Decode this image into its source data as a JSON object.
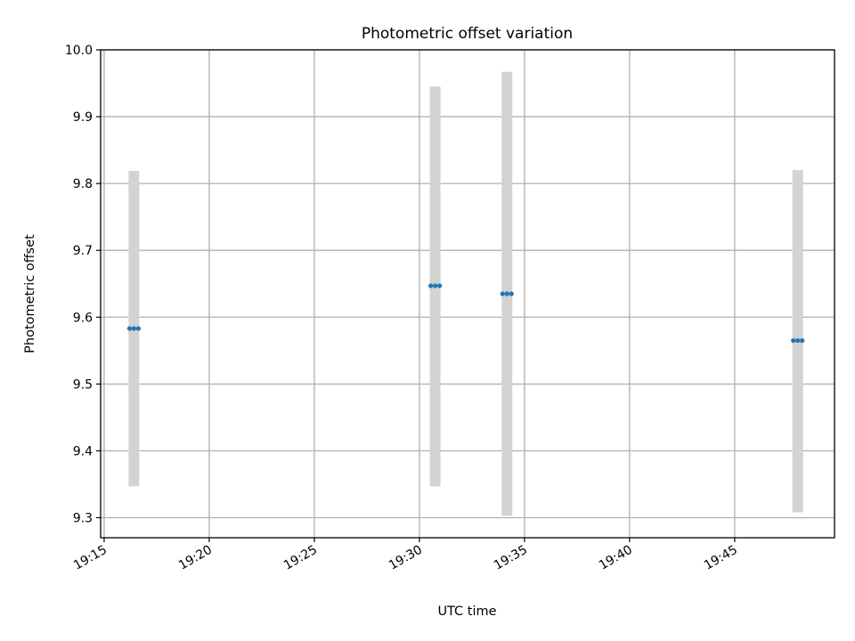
{
  "chart_data": {
    "type": "scatter",
    "title": "Photometric offset variation",
    "xlabel": "UTC time",
    "ylabel": "Photometric offset",
    "x_tick_labels": [
      "19:15",
      "19:20",
      "19:25",
      "19:30",
      "19:35",
      "19:40",
      "19:45"
    ],
    "y_tick_labels": [
      "9.3",
      "9.4",
      "9.5",
      "9.6",
      "9.7",
      "9.8",
      "9.9",
      "10.0"
    ],
    "xlim": [
      "19:14:50",
      "19:49:45"
    ],
    "ylim": [
      9.27,
      10.0
    ],
    "grid": true,
    "colors": {
      "points": "#1f77b4",
      "error_bars": "#d3d3d3",
      "grid": "#b0b0b0"
    },
    "points": [
      {
        "x": "19:16:25",
        "y": 9.583,
        "ymin": 9.347,
        "ymax": 9.819
      },
      {
        "x": "19:30:45",
        "y": 9.647,
        "ymin": 9.347,
        "ymax": 9.945
      },
      {
        "x": "19:34:10",
        "y": 9.635,
        "ymin": 9.303,
        "ymax": 9.967
      },
      {
        "x": "19:48:00",
        "y": 9.565,
        "ymin": 9.308,
        "ymax": 9.82
      }
    ]
  }
}
